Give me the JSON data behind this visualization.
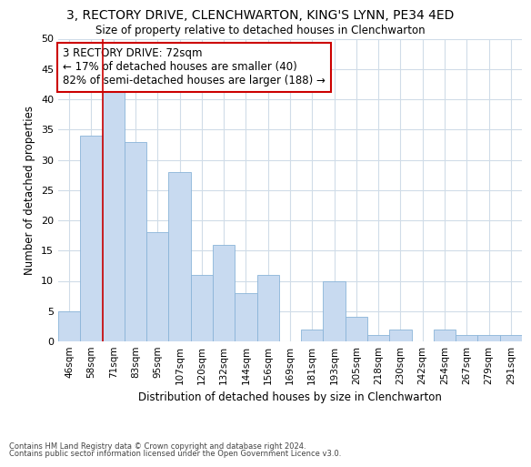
{
  "title1": "3, RECTORY DRIVE, CLENCHWARTON, KING'S LYNN, PE34 4ED",
  "title2": "Size of property relative to detached houses in Clenchwarton",
  "xlabel": "Distribution of detached houses by size in Clenchwarton",
  "ylabel": "Number of detached properties",
  "categories": [
    "46sqm",
    "58sqm",
    "71sqm",
    "83sqm",
    "95sqm",
    "107sqm",
    "120sqm",
    "132sqm",
    "144sqm",
    "156sqm",
    "169sqm",
    "181sqm",
    "193sqm",
    "205sqm",
    "218sqm",
    "230sqm",
    "242sqm",
    "254sqm",
    "267sqm",
    "279sqm",
    "291sqm"
  ],
  "values": [
    5,
    34,
    42,
    33,
    18,
    28,
    11,
    16,
    8,
    11,
    0,
    2,
    10,
    4,
    1,
    2,
    0,
    2,
    1,
    1,
    1
  ],
  "bar_color": "#c8daf0",
  "bar_edge_color": "#8ab4d8",
  "vline_x_index": 2,
  "vline_color": "#cc0000",
  "annotation_text": "3 RECTORY DRIVE: 72sqm\n← 17% of detached houses are smaller (40)\n82% of semi-detached houses are larger (188) →",
  "annotation_box_color": "#ffffff",
  "annotation_box_edge": "#cc0000",
  "ylim": [
    0,
    50
  ],
  "yticks": [
    0,
    5,
    10,
    15,
    20,
    25,
    30,
    35,
    40,
    45,
    50
  ],
  "footnote1": "Contains HM Land Registry data © Crown copyright and database right 2024.",
  "footnote2": "Contains public sector information licensed under the Open Government Licence v3.0.",
  "bg_color": "#ffffff",
  "plot_bg_color": "#ffffff",
  "grid_color": "#d0dce8"
}
